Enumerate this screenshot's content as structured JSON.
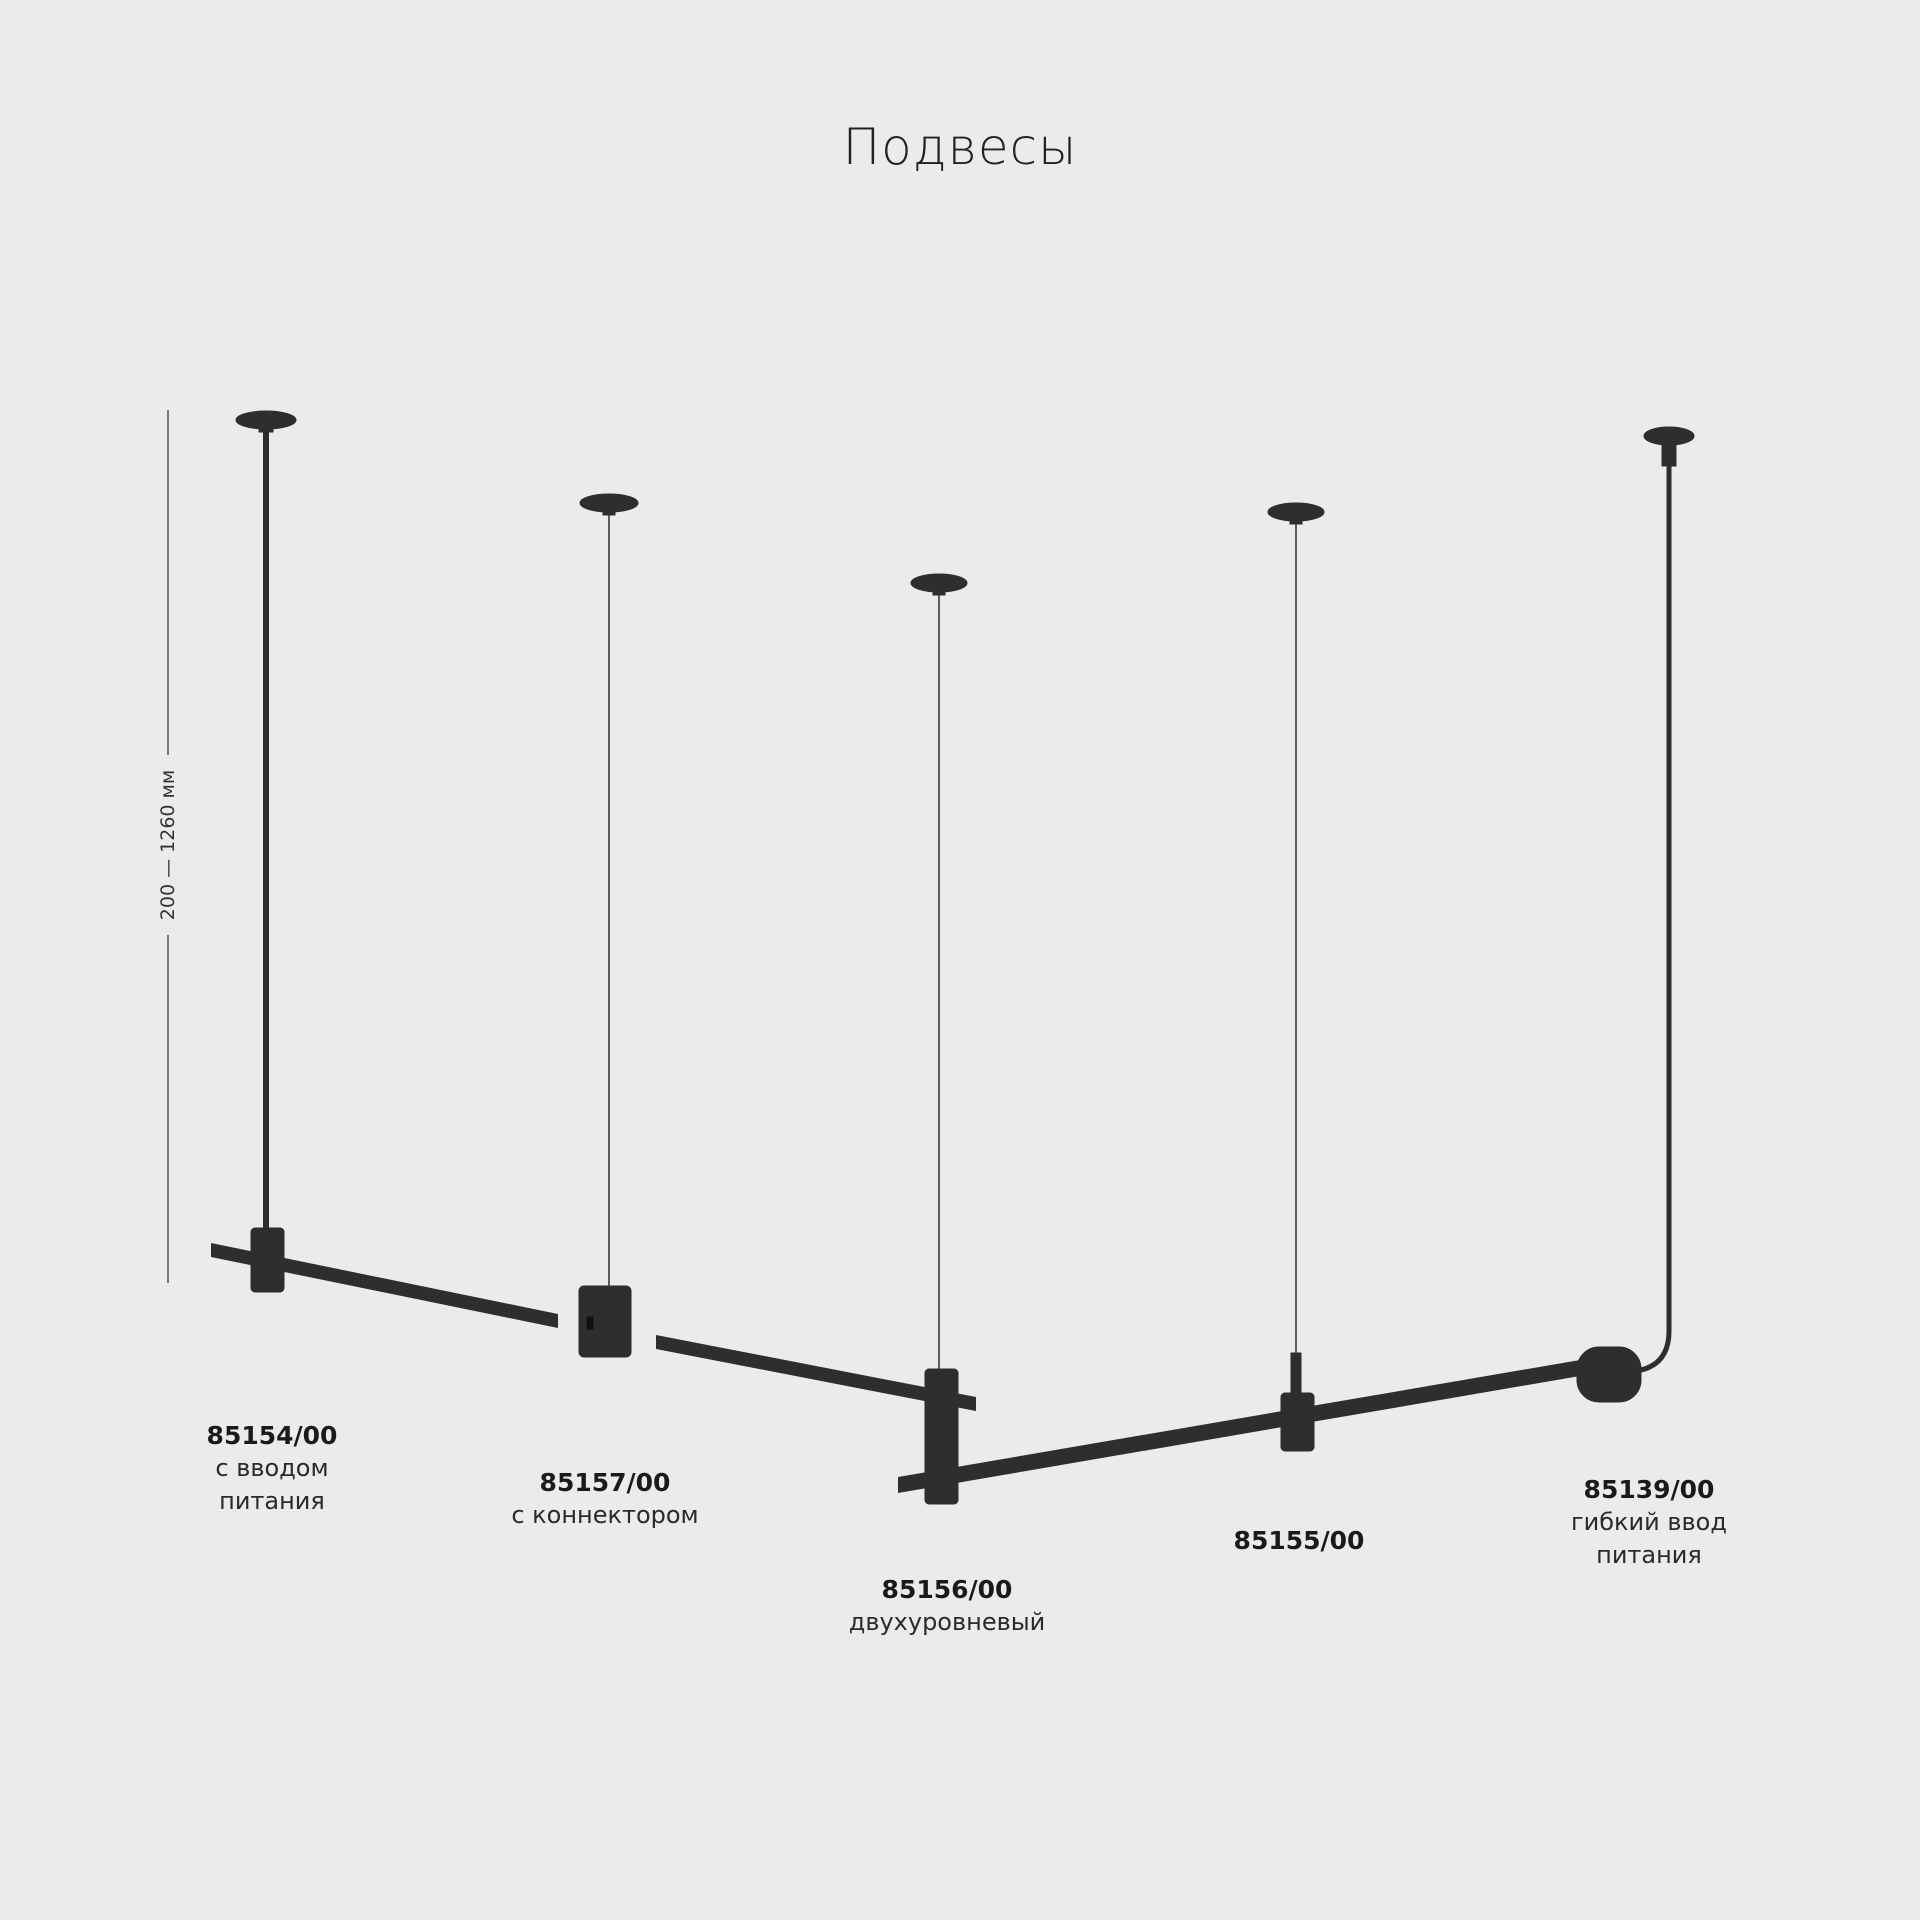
{
  "title": "Подвесы",
  "dimension_label": "200 — 1260 мм",
  "products": [
    {
      "code": "85154/00",
      "desc": [
        "с вводом",
        "питания"
      ]
    },
    {
      "code": "85157/00",
      "desc": [
        "с коннектором"
      ]
    },
    {
      "code": "85156/00",
      "desc": [
        "двухуровневый"
      ]
    },
    {
      "code": "85155/00",
      "desc": []
    },
    {
      "code": "85139/00",
      "desc": [
        "гибкий ввод",
        "питания"
      ]
    }
  ],
  "colors": {
    "background": "#ebebeb",
    "fixture": "#2e2e2e"
  }
}
